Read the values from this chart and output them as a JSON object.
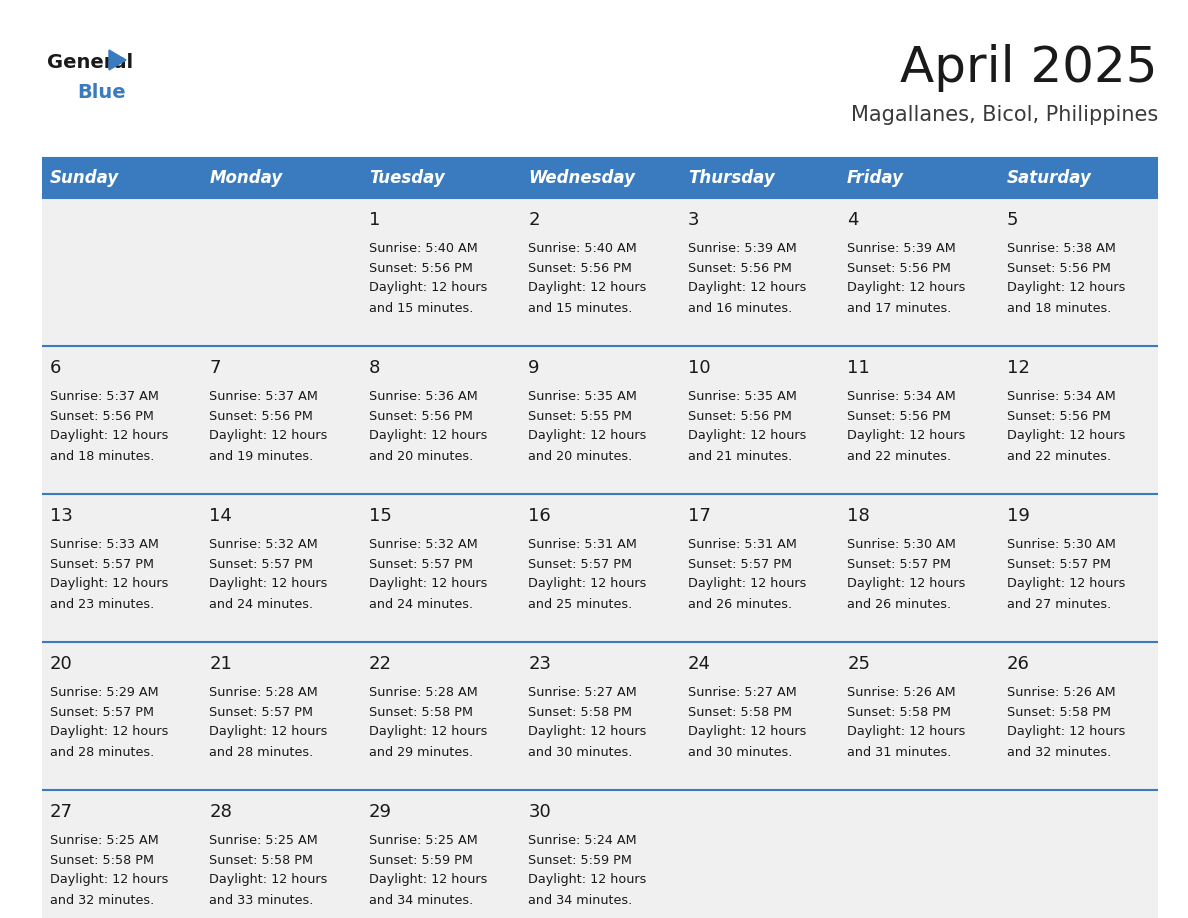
{
  "title": "April 2025",
  "subtitle": "Magallanes, Bicol, Philippines",
  "header_bg_color": "#3a7bbf",
  "header_text_color": "#ffffff",
  "cell_bg_color": "#f0f0f0",
  "cell_border_color": "#3a7bbf",
  "text_color": "#1a1a1a",
  "days_of_week": [
    "Sunday",
    "Monday",
    "Tuesday",
    "Wednesday",
    "Thursday",
    "Friday",
    "Saturday"
  ],
  "weeks": [
    [
      {
        "day": "",
        "sunrise": "",
        "sunset": "",
        "daylight": ""
      },
      {
        "day": "",
        "sunrise": "",
        "sunset": "",
        "daylight": ""
      },
      {
        "day": "1",
        "sunrise": "Sunrise: 5:40 AM",
        "sunset": "Sunset: 5:56 PM",
        "daylight": "Daylight: 12 hours\nand 15 minutes."
      },
      {
        "day": "2",
        "sunrise": "Sunrise: 5:40 AM",
        "sunset": "Sunset: 5:56 PM",
        "daylight": "Daylight: 12 hours\nand 15 minutes."
      },
      {
        "day": "3",
        "sunrise": "Sunrise: 5:39 AM",
        "sunset": "Sunset: 5:56 PM",
        "daylight": "Daylight: 12 hours\nand 16 minutes."
      },
      {
        "day": "4",
        "sunrise": "Sunrise: 5:39 AM",
        "sunset": "Sunset: 5:56 PM",
        "daylight": "Daylight: 12 hours\nand 17 minutes."
      },
      {
        "day": "5",
        "sunrise": "Sunrise: 5:38 AM",
        "sunset": "Sunset: 5:56 PM",
        "daylight": "Daylight: 12 hours\nand 18 minutes."
      }
    ],
    [
      {
        "day": "6",
        "sunrise": "Sunrise: 5:37 AM",
        "sunset": "Sunset: 5:56 PM",
        "daylight": "Daylight: 12 hours\nand 18 minutes."
      },
      {
        "day": "7",
        "sunrise": "Sunrise: 5:37 AM",
        "sunset": "Sunset: 5:56 PM",
        "daylight": "Daylight: 12 hours\nand 19 minutes."
      },
      {
        "day": "8",
        "sunrise": "Sunrise: 5:36 AM",
        "sunset": "Sunset: 5:56 PM",
        "daylight": "Daylight: 12 hours\nand 20 minutes."
      },
      {
        "day": "9",
        "sunrise": "Sunrise: 5:35 AM",
        "sunset": "Sunset: 5:55 PM",
        "daylight": "Daylight: 12 hours\nand 20 minutes."
      },
      {
        "day": "10",
        "sunrise": "Sunrise: 5:35 AM",
        "sunset": "Sunset: 5:56 PM",
        "daylight": "Daylight: 12 hours\nand 21 minutes."
      },
      {
        "day": "11",
        "sunrise": "Sunrise: 5:34 AM",
        "sunset": "Sunset: 5:56 PM",
        "daylight": "Daylight: 12 hours\nand 22 minutes."
      },
      {
        "day": "12",
        "sunrise": "Sunrise: 5:34 AM",
        "sunset": "Sunset: 5:56 PM",
        "daylight": "Daylight: 12 hours\nand 22 minutes."
      }
    ],
    [
      {
        "day": "13",
        "sunrise": "Sunrise: 5:33 AM",
        "sunset": "Sunset: 5:57 PM",
        "daylight": "Daylight: 12 hours\nand 23 minutes."
      },
      {
        "day": "14",
        "sunrise": "Sunrise: 5:32 AM",
        "sunset": "Sunset: 5:57 PM",
        "daylight": "Daylight: 12 hours\nand 24 minutes."
      },
      {
        "day": "15",
        "sunrise": "Sunrise: 5:32 AM",
        "sunset": "Sunset: 5:57 PM",
        "daylight": "Daylight: 12 hours\nand 24 minutes."
      },
      {
        "day": "16",
        "sunrise": "Sunrise: 5:31 AM",
        "sunset": "Sunset: 5:57 PM",
        "daylight": "Daylight: 12 hours\nand 25 minutes."
      },
      {
        "day": "17",
        "sunrise": "Sunrise: 5:31 AM",
        "sunset": "Sunset: 5:57 PM",
        "daylight": "Daylight: 12 hours\nand 26 minutes."
      },
      {
        "day": "18",
        "sunrise": "Sunrise: 5:30 AM",
        "sunset": "Sunset: 5:57 PM",
        "daylight": "Daylight: 12 hours\nand 26 minutes."
      },
      {
        "day": "19",
        "sunrise": "Sunrise: 5:30 AM",
        "sunset": "Sunset: 5:57 PM",
        "daylight": "Daylight: 12 hours\nand 27 minutes."
      }
    ],
    [
      {
        "day": "20",
        "sunrise": "Sunrise: 5:29 AM",
        "sunset": "Sunset: 5:57 PM",
        "daylight": "Daylight: 12 hours\nand 28 minutes."
      },
      {
        "day": "21",
        "sunrise": "Sunrise: 5:28 AM",
        "sunset": "Sunset: 5:57 PM",
        "daylight": "Daylight: 12 hours\nand 28 minutes."
      },
      {
        "day": "22",
        "sunrise": "Sunrise: 5:28 AM",
        "sunset": "Sunset: 5:58 PM",
        "daylight": "Daylight: 12 hours\nand 29 minutes."
      },
      {
        "day": "23",
        "sunrise": "Sunrise: 5:27 AM",
        "sunset": "Sunset: 5:58 PM",
        "daylight": "Daylight: 12 hours\nand 30 minutes."
      },
      {
        "day": "24",
        "sunrise": "Sunrise: 5:27 AM",
        "sunset": "Sunset: 5:58 PM",
        "daylight": "Daylight: 12 hours\nand 30 minutes."
      },
      {
        "day": "25",
        "sunrise": "Sunrise: 5:26 AM",
        "sunset": "Sunset: 5:58 PM",
        "daylight": "Daylight: 12 hours\nand 31 minutes."
      },
      {
        "day": "26",
        "sunrise": "Sunrise: 5:26 AM",
        "sunset": "Sunset: 5:58 PM",
        "daylight": "Daylight: 12 hours\nand 32 minutes."
      }
    ],
    [
      {
        "day": "27",
        "sunrise": "Sunrise: 5:25 AM",
        "sunset": "Sunset: 5:58 PM",
        "daylight": "Daylight: 12 hours\nand 32 minutes."
      },
      {
        "day": "28",
        "sunrise": "Sunrise: 5:25 AM",
        "sunset": "Sunset: 5:58 PM",
        "daylight": "Daylight: 12 hours\nand 33 minutes."
      },
      {
        "day": "29",
        "sunrise": "Sunrise: 5:25 AM",
        "sunset": "Sunset: 5:59 PM",
        "daylight": "Daylight: 12 hours\nand 34 minutes."
      },
      {
        "day": "30",
        "sunrise": "Sunrise: 5:24 AM",
        "sunset": "Sunset: 5:59 PM",
        "daylight": "Daylight: 12 hours\nand 34 minutes."
      },
      {
        "day": "",
        "sunrise": "",
        "sunset": "",
        "daylight": ""
      },
      {
        "day": "",
        "sunrise": "",
        "sunset": "",
        "daylight": ""
      },
      {
        "day": "",
        "sunrise": "",
        "sunset": "",
        "daylight": ""
      }
    ]
  ],
  "logo_color_general": "#1a1a1a",
  "logo_color_blue": "#3a7bbf"
}
